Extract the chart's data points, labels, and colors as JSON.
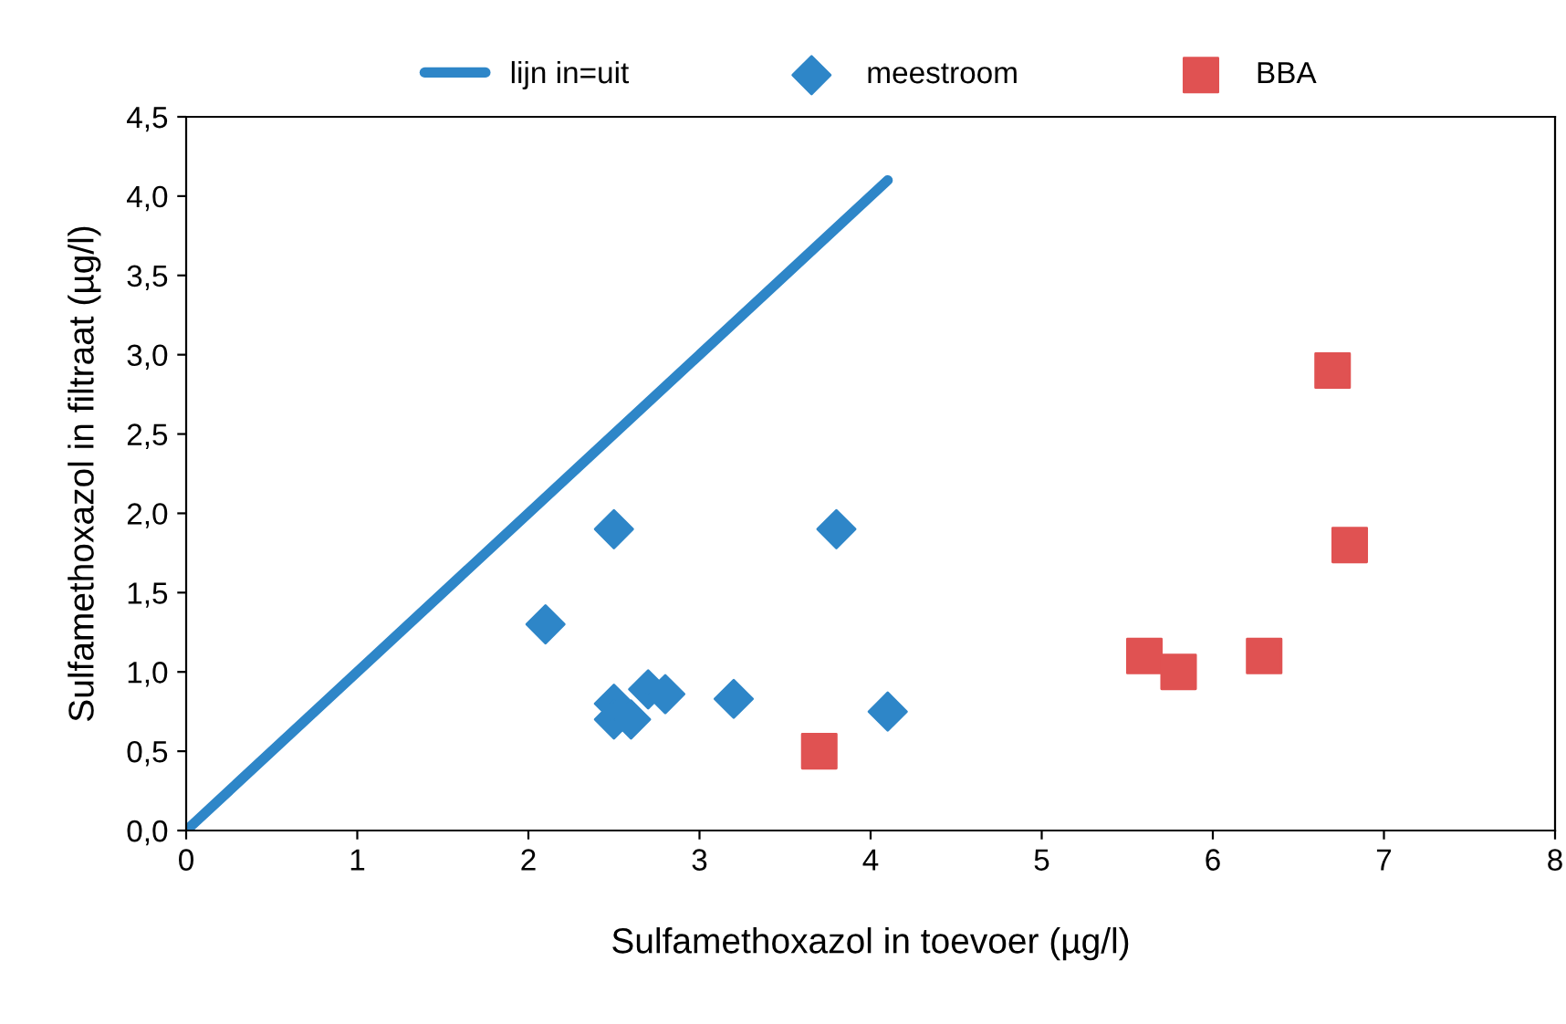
{
  "chart_data": {
    "type": "scatter",
    "xlabel": "Sulfamethoxazol in toevoer (µg/l)",
    "ylabel": "Sulfamethoxazol in filtraat (µg/l)",
    "xlim": [
      0,
      8
    ],
    "xticks": [
      0,
      1,
      2,
      3,
      4,
      5,
      6,
      7,
      8
    ],
    "ylim": [
      0,
      4.5
    ],
    "yticks": [
      {
        "value": 0,
        "label": "0,0"
      },
      {
        "value": 0.5,
        "label": "0,5"
      },
      {
        "value": 1,
        "label": "1,0"
      },
      {
        "value": 1.5,
        "label": "1,5"
      },
      {
        "value": 2,
        "label": "2,0"
      },
      {
        "value": 2.5,
        "label": "2,5"
      },
      {
        "value": 3,
        "label": "3,0"
      },
      {
        "value": 3.5,
        "label": "3,5"
      },
      {
        "value": 4,
        "label": "4,0"
      },
      {
        "value": 4.5,
        "label": "4,5"
      }
    ],
    "grid": false,
    "legend": "top",
    "series": [
      {
        "name": "lijn in=uit",
        "type": "line",
        "color": "#2e86c8",
        "marker": "none",
        "line_style": "solid",
        "x": [
          0,
          4.1
        ],
        "values": [
          0,
          4.1
        ]
      },
      {
        "name": "meestroom",
        "color": "#2e86c8",
        "marker": "diamond",
        "x": [
          2.1,
          2.5,
          3.8,
          2.5,
          2.5,
          2.6,
          2.7,
          2.8,
          3.2,
          4.1
        ],
        "values": [
          1.3,
          1.9,
          1.9,
          0.8,
          0.7,
          0.7,
          0.89,
          0.86,
          0.83,
          0.75
        ]
      },
      {
        "name": "BBA",
        "color": "#e05252",
        "marker": "square",
        "x": [
          3.7,
          5.6,
          5.8,
          6.3,
          6.7,
          6.8
        ],
        "values": [
          0.5,
          1.1,
          1.0,
          1.1,
          2.9,
          1.8
        ]
      }
    ]
  }
}
